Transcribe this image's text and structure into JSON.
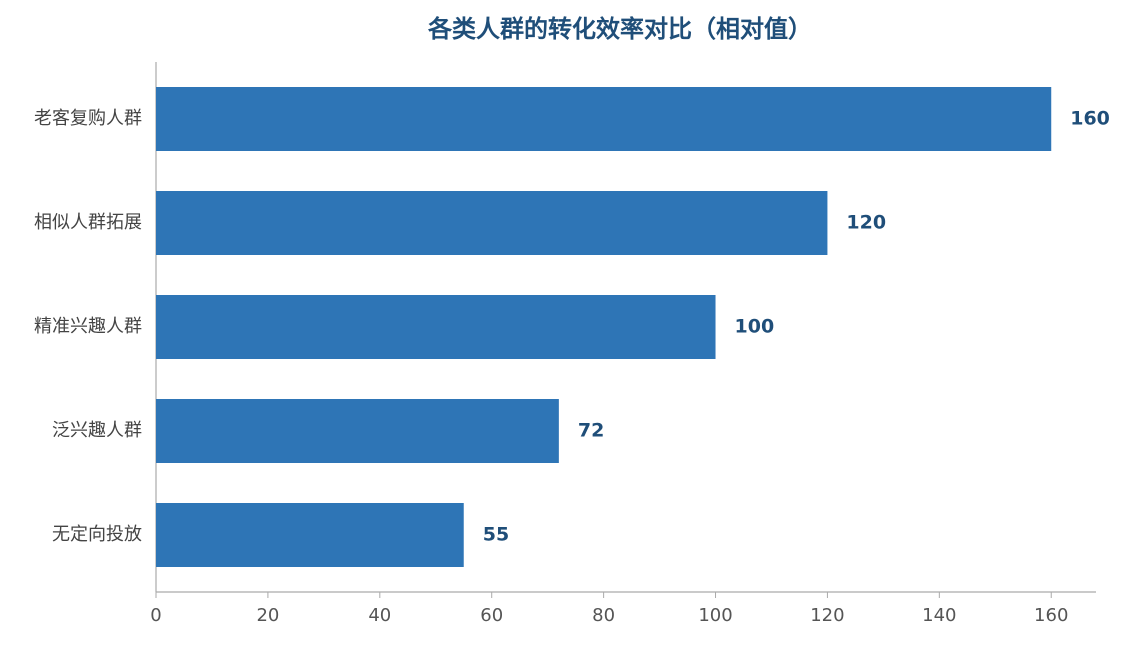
{
  "chart_data": {
    "type": "barh",
    "title": "各类人群的转化效率对比（相对值）",
    "categories": [
      "老客复购人群",
      "相似人群拓展",
      "精准兴趣人群",
      "泛兴趣人群",
      "无定向投放"
    ],
    "values": [
      160,
      120,
      100,
      72,
      55
    ],
    "color": "#2e75b6",
    "xlim": [
      0,
      168
    ],
    "xticks": [
      0,
      20,
      40,
      60,
      80,
      100,
      120,
      140,
      160
    ],
    "grid": false
  }
}
